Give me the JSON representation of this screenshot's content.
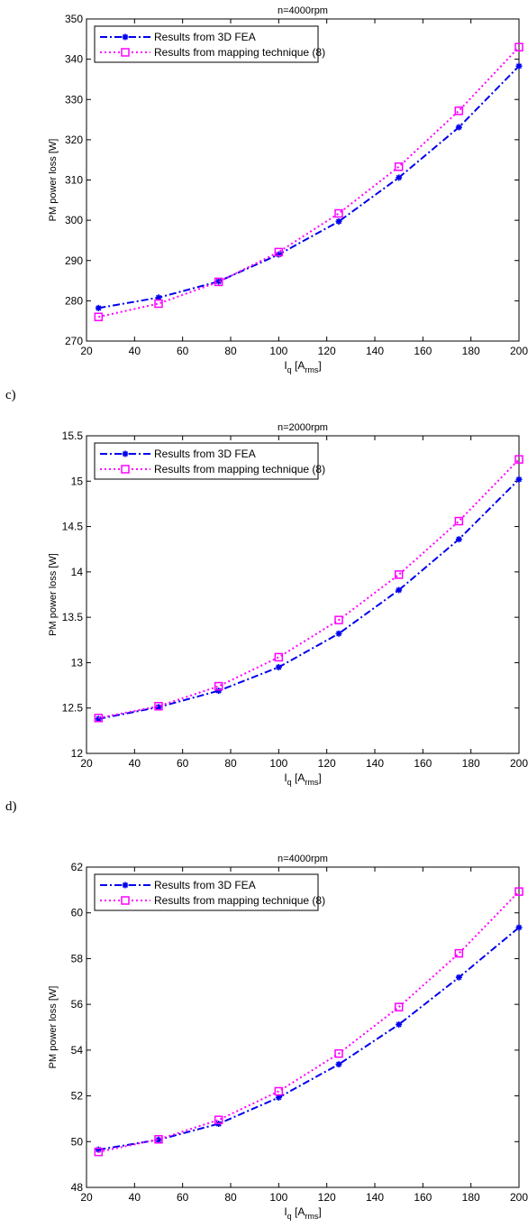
{
  "panel_labels": [
    "c)",
    "d)"
  ],
  "chart_data": [
    {
      "type": "line",
      "title": "n=4000rpm",
      "ylabel": "PM power loss [W]",
      "xlabel_main": "I",
      "xlabel_sub1": "q",
      "xlabel_mid": " [A",
      "xlabel_sub2": "rms",
      "xlabel_end": "]",
      "xlim": [
        20,
        200
      ],
      "ylim": [
        270,
        350
      ],
      "xticks": [
        20,
        40,
        60,
        80,
        100,
        120,
        140,
        160,
        180,
        200
      ],
      "yticks": [
        270,
        280,
        290,
        300,
        310,
        320,
        330,
        340,
        350
      ],
      "x": [
        25,
        50,
        75,
        100,
        125,
        150,
        175,
        200
      ],
      "legend_position": "top-left",
      "grid": false,
      "series": [
        {
          "name": "Results from 3D FEA",
          "color": "#0000ee",
          "style": "dashdot",
          "marker": "star",
          "values": [
            278.2,
            280.8,
            284.8,
            291.5,
            299.7,
            310.6,
            323.1,
            338.3
          ]
        },
        {
          "name": "Results from mapping technique (8)",
          "color": "#ff00ff",
          "style": "dotted",
          "marker": "square",
          "values": [
            276.0,
            279.3,
            284.7,
            292.1,
            301.7,
            313.3,
            327.2,
            343.0
          ]
        }
      ]
    },
    {
      "type": "line",
      "title": "n=2000rpm",
      "ylabel": "PM power loss [W]",
      "xlabel_main": "I",
      "xlabel_sub1": "q",
      "xlabel_mid": " [A",
      "xlabel_sub2": "rms",
      "xlabel_end": "]",
      "xlim": [
        20,
        200
      ],
      "ylim": [
        12,
        15.5
      ],
      "xticks": [
        20,
        40,
        60,
        80,
        100,
        120,
        140,
        160,
        180,
        200
      ],
      "yticks": [
        12,
        12.5,
        13,
        13.5,
        14,
        14.5,
        15,
        15.5
      ],
      "x": [
        25,
        50,
        75,
        100,
        125,
        150,
        175,
        200
      ],
      "legend_position": "top-left",
      "grid": false,
      "series": [
        {
          "name": "Results from 3D FEA",
          "color": "#0000ee",
          "style": "dashdot",
          "marker": "star",
          "values": [
            12.38,
            12.51,
            12.69,
            12.95,
            13.32,
            13.8,
            14.36,
            15.02
          ]
        },
        {
          "name": "Results from mapping technique (8)",
          "color": "#ff00ff",
          "style": "dotted",
          "marker": "square",
          "values": [
            12.39,
            12.52,
            12.74,
            13.06,
            13.47,
            13.97,
            14.56,
            15.24
          ]
        }
      ]
    },
    {
      "type": "line",
      "title": "n=4000rpm",
      "ylabel": "PM power loss [W]",
      "xlabel_main": "I",
      "xlabel_sub1": "q",
      "xlabel_mid": " [A",
      "xlabel_sub2": "rms",
      "xlabel_end": "]",
      "xlim": [
        20,
        200
      ],
      "ylim": [
        48,
        62
      ],
      "xticks": [
        20,
        40,
        60,
        80,
        100,
        120,
        140,
        160,
        180,
        200
      ],
      "yticks": [
        48,
        50,
        52,
        54,
        56,
        58,
        60,
        62
      ],
      "x": [
        25,
        50,
        75,
        100,
        125,
        150,
        175,
        200
      ],
      "legend_position": "top-left",
      "grid": false,
      "series": [
        {
          "name": "Results from 3D FEA",
          "color": "#0000ee",
          "style": "dashdot",
          "marker": "star",
          "values": [
            49.65,
            50.08,
            50.78,
            51.93,
            53.38,
            55.12,
            57.18,
            59.36
          ]
        },
        {
          "name": "Results from mapping technique (8)",
          "color": "#ff00ff",
          "style": "dotted",
          "marker": "square",
          "values": [
            49.55,
            50.1,
            50.95,
            52.2,
            53.85,
            55.88,
            58.23,
            60.93
          ]
        }
      ]
    }
  ]
}
